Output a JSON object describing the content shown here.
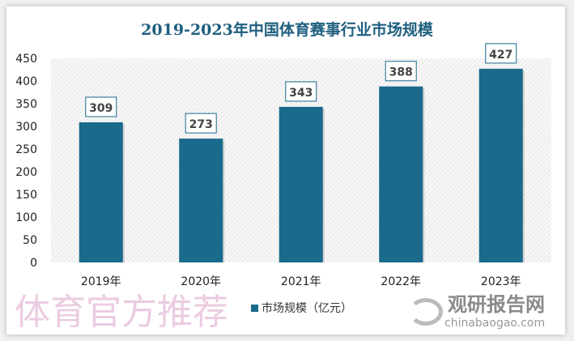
{
  "chart_data": {
    "type": "bar",
    "title": "2019-2023年中国体育赛事行业市场规模",
    "categories": [
      "2019年",
      "2020年",
      "2021年",
      "2022年",
      "2023年"
    ],
    "series": [
      {
        "name": "市场规模（亿元）",
        "values": [
          309,
          273,
          343,
          388,
          427
        ]
      }
    ],
    "ylim": [
      0,
      450
    ],
    "yticks": [
      0,
      50,
      100,
      150,
      200,
      250,
      300,
      350,
      400,
      450
    ],
    "grid": false,
    "legend": "bottom",
    "bar_color": "#1a6a8c",
    "background": "hatched light gray"
  },
  "watermark": "体育官方推荐",
  "logo": {
    "cn": "观研报告网",
    "en": "chinabaogao.com"
  }
}
